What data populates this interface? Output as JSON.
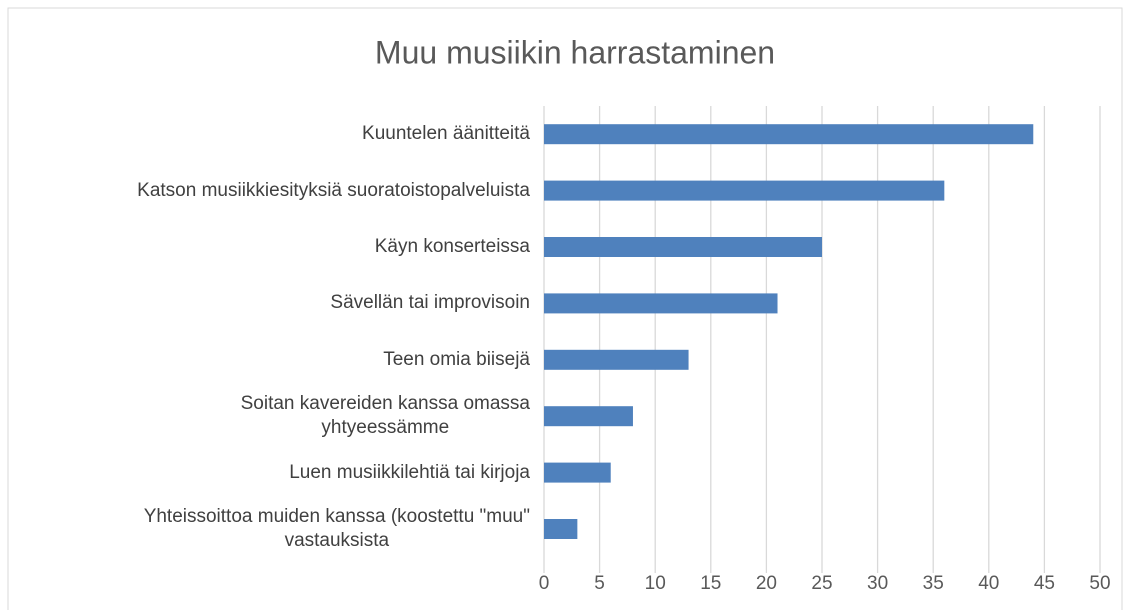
{
  "chart_data": {
    "type": "bar",
    "orientation": "horizontal",
    "title": "Muu musiikin harrastaminen",
    "categories": [
      "Kuuntelen äänitteitä",
      "Katson musiikkiesityksiä suoratoistopalveluista",
      "Käyn konserteissa",
      "Sävellän tai improvisoin",
      "Teen omia biisejä",
      "Soitan kavereiden kanssa omassa\nyhtyeessämme",
      "Luen musiikkilehtiä tai kirjoja",
      "Yhteissoittoa muiden kanssa (koostettu \"muu\"\nvastauksista"
    ],
    "values": [
      44,
      36,
      25,
      21,
      13,
      8,
      6,
      3
    ],
    "color": "#4f81bd",
    "xlim": [
      0,
      50
    ],
    "xticks": [
      0,
      5,
      10,
      15,
      20,
      25,
      30,
      35,
      40,
      45,
      50
    ],
    "grid": true
  }
}
